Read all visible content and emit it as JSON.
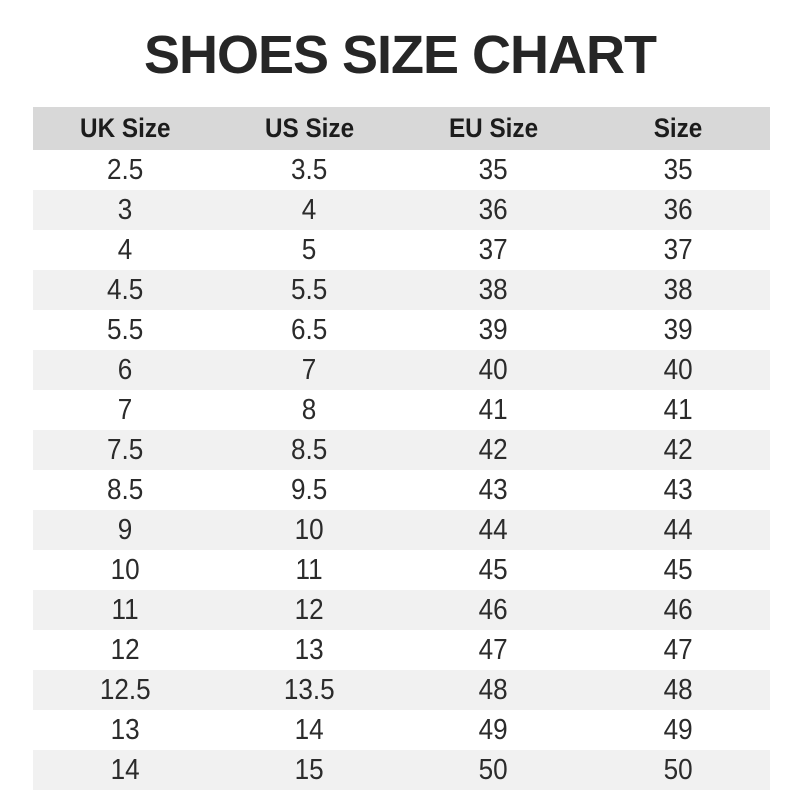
{
  "title": "SHOES SIZE CHART",
  "colors": {
    "header_bg": "#d8d8d8",
    "row_alt_bg": "#f1f1f1",
    "text": "#262626",
    "background": "#ffffff"
  },
  "chart_data": {
    "type": "table",
    "title": "SHOES SIZE CHART",
    "columns": [
      "UK Size",
      "US Size",
      "EU Size",
      "Size"
    ],
    "rows": [
      [
        "2.5",
        "3.5",
        "35",
        "35"
      ],
      [
        "3",
        "4",
        "36",
        "36"
      ],
      [
        "4",
        "5",
        "37",
        "37"
      ],
      [
        "4.5",
        "5.5",
        "38",
        "38"
      ],
      [
        "5.5",
        "6.5",
        "39",
        "39"
      ],
      [
        "6",
        "7",
        "40",
        "40"
      ],
      [
        "7",
        "8",
        "41",
        "41"
      ],
      [
        "7.5",
        "8.5",
        "42",
        "42"
      ],
      [
        "8.5",
        "9.5",
        "43",
        "43"
      ],
      [
        "9",
        "10",
        "44",
        "44"
      ],
      [
        "10",
        "11",
        "45",
        "45"
      ],
      [
        "11",
        "12",
        "46",
        "46"
      ],
      [
        "12",
        "13",
        "47",
        "47"
      ],
      [
        "12.5",
        "13.5",
        "48",
        "48"
      ],
      [
        "13",
        "14",
        "49",
        "49"
      ],
      [
        "14",
        "15",
        "50",
        "50"
      ]
    ],
    "layout": {
      "zebra_striping": true,
      "first_data_row_background": "white",
      "grid_lines": false
    }
  }
}
